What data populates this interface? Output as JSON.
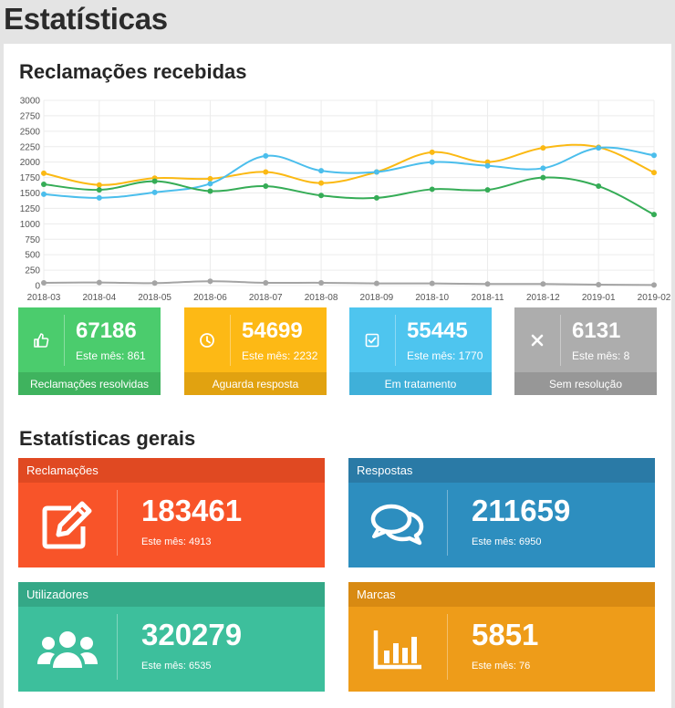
{
  "page": {
    "title": "Estatísticas"
  },
  "sections": {
    "complaints_received": "Reclamações recebidas",
    "general_stats": "Estatísticas gerais"
  },
  "chart_data": {
    "type": "line",
    "x": [
      "2018-03",
      "2018-04",
      "2018-05",
      "2018-06",
      "2018-07",
      "2018-08",
      "2018-09",
      "2018-10",
      "2018-11",
      "2018-12",
      "2019-01",
      "2019-02"
    ],
    "y_ticks": [
      0,
      250,
      500,
      750,
      1000,
      1250,
      1500,
      1750,
      2000,
      2250,
      2500,
      2750,
      3000
    ],
    "ylim": [
      0,
      3000
    ],
    "grid": true,
    "smooth": true,
    "series": [
      {
        "color": "#fbb913",
        "values": [
          1820,
          1630,
          1740,
          1730,
          1840,
          1660,
          1840,
          2160,
          2000,
          2230,
          2240,
          1830
        ]
      },
      {
        "color": "#4bbeec",
        "values": [
          1480,
          1420,
          1510,
          1650,
          2100,
          1860,
          1840,
          2000,
          1940,
          1900,
          2230,
          2110
        ]
      },
      {
        "color": "#35ac56",
        "values": [
          1640,
          1550,
          1690,
          1530,
          1610,
          1460,
          1420,
          1560,
          1550,
          1750,
          1610,
          1150
        ]
      },
      {
        "color": "#a4a4a4",
        "values": [
          45,
          50,
          40,
          70,
          45,
          45,
          35,
          35,
          25,
          25,
          15,
          10
        ]
      }
    ]
  },
  "stat_cards": [
    {
      "icon": "thumbs-up-icon",
      "value": "67186",
      "month": "Este mês: 861",
      "label": "Reclamações resolvidas",
      "color": "#4bcc6d",
      "foot_color": "#3fb35e"
    },
    {
      "icon": "clock-icon",
      "value": "54699",
      "month": "Este mês: 2232",
      "label": "Aguarda resposta",
      "color": "#fdb915",
      "foot_color": "#e1a210"
    },
    {
      "icon": "check-square-icon",
      "value": "55445",
      "month": "Este mês: 1770",
      "label": "Em tratamento",
      "color": "#4ec5ef",
      "foot_color": "#3fb0d9"
    },
    {
      "icon": "close-icon",
      "value": "6131",
      "month": "Este mês: 8",
      "label": "Sem resolução",
      "color": "#adadad",
      "foot_color": "#979797"
    }
  ],
  "general_cards": [
    {
      "icon": "edit-icon",
      "label": "Reclamações",
      "value": "183461",
      "month": "Este mês: 4913",
      "color": "#f85429",
      "head_color": "#e04922"
    },
    {
      "icon": "comments-icon",
      "label": "Respostas",
      "value": "211659",
      "month": "Este mês: 6950",
      "color": "#2d8ebf",
      "head_color": "#2a7aa6"
    },
    {
      "icon": "users-icon",
      "label": "Utilizadores",
      "value": "320279",
      "month": "Este mês: 6535",
      "color": "#3dbf9c",
      "head_color": "#34a887"
    },
    {
      "icon": "bar-chart-icon",
      "label": "Marcas",
      "value": "5851",
      "month": "Este mês: 76",
      "color": "#ee9c19",
      "head_color": "#d88a12"
    }
  ]
}
